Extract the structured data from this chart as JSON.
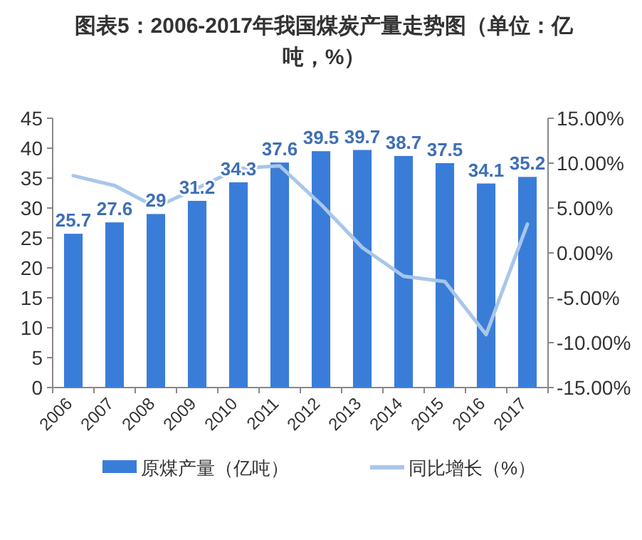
{
  "chart_data": {
    "type": "bar",
    "title": "图表5：2006-2017年我国煤炭产量走势图（单位：亿吨，%）",
    "categories": [
      "2006",
      "2007",
      "2008",
      "2009",
      "2010",
      "2011",
      "2012",
      "2013",
      "2014",
      "2015",
      "2016",
      "2017"
    ],
    "series": [
      {
        "name": "原煤产量（亿吨）",
        "color": "#3a7dd9",
        "values": [
          25.7,
          27.6,
          29,
          31.2,
          34.3,
          37.6,
          39.5,
          39.7,
          38.7,
          37.5,
          34.1,
          35.2
        ],
        "value_labels": [
          "25.7",
          "27.6",
          "29",
          "31.2",
          "34.3",
          "37.6",
          "39.5",
          "39.7",
          "38.7",
          "37.5",
          "34.1",
          "35.2"
        ]
      },
      {
        "name": "同比增长（%）",
        "type": "line",
        "axis": "y2",
        "color": "#a8c6ea",
        "values": [
          8.6,
          7.5,
          5.1,
          7.2,
          9.4,
          9.7,
          5.4,
          0.6,
          -2.6,
          -3.2,
          -9.1,
          3.2
        ]
      }
    ],
    "ylim": [
      0,
      45
    ],
    "yticks": [
      0,
      5,
      10,
      15,
      20,
      25,
      30,
      35,
      40,
      45
    ],
    "y2lim": [
      -15,
      15
    ],
    "y2ticks": [
      {
        "value": -15,
        "label": "-15.00%"
      },
      {
        "value": -10,
        "label": "-10.00%"
      },
      {
        "value": -5,
        "label": "-5.00%"
      },
      {
        "value": 0,
        "label": "0.00%"
      },
      {
        "value": 5,
        "label": "5.00%"
      },
      {
        "value": 10,
        "label": "10.00%"
      },
      {
        "value": 15,
        "label": "15.00%"
      }
    ],
    "legend": "bottom",
    "grid": false
  }
}
